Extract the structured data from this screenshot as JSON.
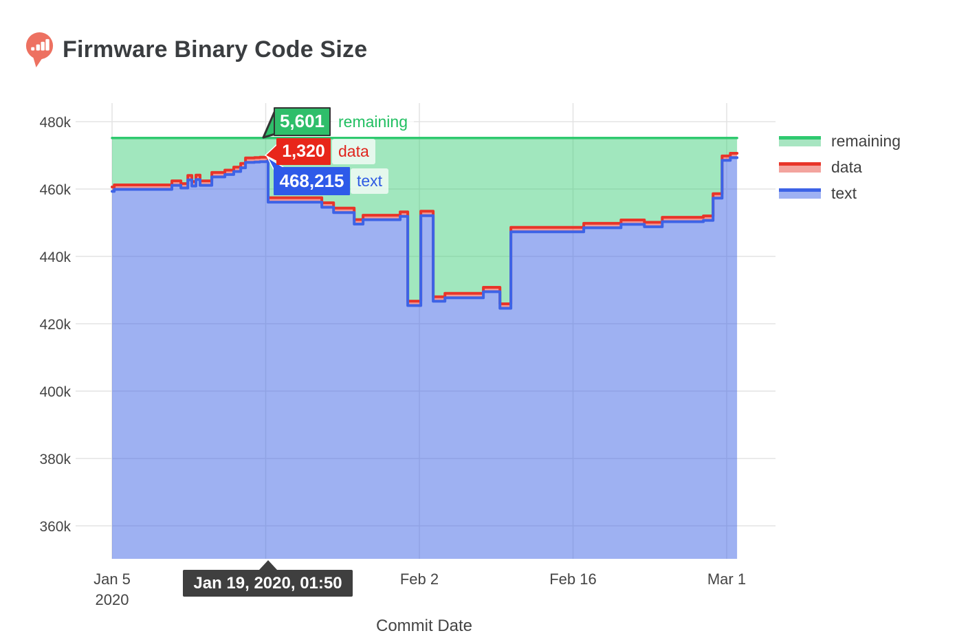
{
  "header": {
    "title": "Firmware Binary Code Size",
    "logo_icon": "bar-chart-pin-icon"
  },
  "colors": {
    "logo": "#ED7161",
    "title_text": "#3A3D40",
    "tick_text": "#444444",
    "gridline": "#E3E3E3",
    "text_line": "#3D63E6",
    "text_fill": "rgba(61,99,230,0.5)",
    "data_line": "#E83529",
    "data_fill": "rgba(232,53,41,0.5)",
    "remaining_line": "#2FC96F",
    "remaining_fill": "rgba(47,201,111,0.45)",
    "hover_remaining_bg": "#2FBE6A",
    "hover_remaining_border": "#333333",
    "hover_data_bg": "#E8261A",
    "hover_text_bg": "#2E5AE9",
    "hover_label_bg": "rgba(255,255,255,0.72)",
    "hover_label_remaining_text": "#21BF61",
    "hover_label_data_text": "#E0241D",
    "hover_label_text_text": "#2E5BE3",
    "date_tooltip_bg": "#3F3F3F"
  },
  "hover": {
    "date": "Jan 19, 2020, 01:50",
    "remaining": {
      "value": "5,601",
      "label": "remaining"
    },
    "data": {
      "value": "1,320",
      "label": "data"
    },
    "text": {
      "value": "468,215",
      "label": "text"
    }
  },
  "chart_data": {
    "type": "area",
    "stacked": true,
    "title": "Firmware Binary Code Size",
    "xlabel": "Commit Date",
    "ylabel": "",
    "x_unit_days_since": "Jan 5, 2020",
    "total_capacity": 475136,
    "data_series_constant": 1320,
    "grid": true,
    "legend_position": "right",
    "legend": [
      {
        "name": "remaining",
        "line": "#2FC96F",
        "fill": "#A7E5C1"
      },
      {
        "name": "data",
        "line": "#E83529",
        "fill": "#F3A49E"
      },
      {
        "name": "text",
        "line": "#3D63E6",
        "fill": "#9EB1F3"
      }
    ],
    "y_ticks": [
      {
        "value": 480000,
        "label": "480k"
      },
      {
        "value": 460000,
        "label": "460k"
      },
      {
        "value": 440000,
        "label": "440k"
      },
      {
        "value": 420000,
        "label": "420k"
      },
      {
        "value": 400000,
        "label": "400k"
      },
      {
        "value": 380000,
        "label": "380k"
      },
      {
        "value": 360000,
        "label": "360k"
      }
    ],
    "x_ticks": [
      {
        "day": 0,
        "label": "Jan 5",
        "label2": "2020"
      },
      {
        "day": 14,
        "gridline_only": true
      },
      {
        "day": 28,
        "label": "Feb 2"
      },
      {
        "day": 42,
        "label": "Feb 16"
      },
      {
        "day": 56,
        "label": "Mar 1"
      }
    ],
    "marker": {
      "day": 14.08,
      "text": 468215,
      "data": 1320,
      "remaining": 5601
    },
    "text_steps_day_bytes": [
      [
        0.0,
        459300
      ],
      [
        0.2,
        459900
      ],
      [
        5.45,
        461100
      ],
      [
        6.27,
        460300
      ],
      [
        6.9,
        462700
      ],
      [
        7.27,
        460900
      ],
      [
        7.64,
        462800
      ],
      [
        8.02,
        461100
      ],
      [
        9.09,
        463600
      ],
      [
        10.28,
        464300
      ],
      [
        11.09,
        465200
      ],
      [
        11.72,
        466300
      ],
      [
        12.16,
        467900
      ],
      [
        12.97,
        468000
      ],
      [
        13.47,
        468100
      ],
      [
        14.08,
        468215
      ],
      [
        14.22,
        456100
      ],
      [
        19.11,
        454600
      ],
      [
        20.18,
        453000
      ],
      [
        22.06,
        449600
      ],
      [
        22.87,
        450900
      ],
      [
        26.25,
        451900
      ],
      [
        26.94,
        425400
      ],
      [
        28.13,
        452100
      ],
      [
        29.26,
        426700
      ],
      [
        30.33,
        427700
      ],
      [
        33.83,
        429500
      ],
      [
        35.34,
        424600
      ],
      [
        36.34,
        447300
      ],
      [
        42.98,
        448500
      ],
      [
        46.37,
        449500
      ],
      [
        48.5,
        448800
      ],
      [
        50.13,
        450300
      ],
      [
        53.88,
        450700
      ],
      [
        54.76,
        457300
      ],
      [
        55.58,
        468500
      ],
      [
        56.33,
        469300
      ],
      [
        56.95,
        469300
      ]
    ]
  }
}
